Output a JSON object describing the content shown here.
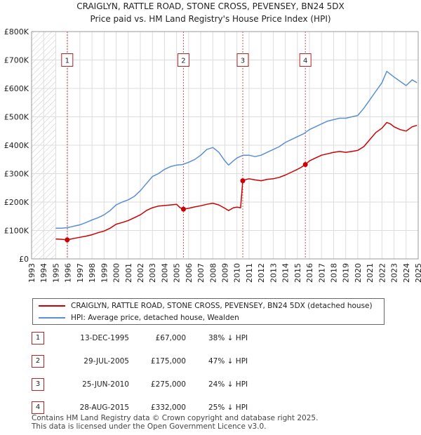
{
  "chart_data": {
    "type": "line",
    "title": "CRAIGLYN, RATTLE ROAD, STONE CROSS, PEVENSEY, BN24 5DX",
    "subtitle": "Price paid vs. HM Land Registry's House Price Index (HPI)",
    "xlabel": "",
    "ylabel": "",
    "xlim": [
      1993,
      2025
    ],
    "ylim": [
      0,
      800000
    ],
    "y_ticks": [
      0,
      100000,
      200000,
      300000,
      400000,
      500000,
      600000,
      700000,
      800000
    ],
    "y_tick_labels": [
      "£0",
      "£100K",
      "£200K",
      "£300K",
      "£400K",
      "£500K",
      "£600K",
      "£700K",
      "£800K"
    ],
    "x_ticks": [
      1993,
      1994,
      1995,
      1996,
      1997,
      1998,
      1999,
      2000,
      2001,
      2002,
      2003,
      2004,
      2005,
      2006,
      2007,
      2008,
      2009,
      2010,
      2011,
      2012,
      2013,
      2014,
      2015,
      2016,
      2017,
      2018,
      2019,
      2020,
      2021,
      2022,
      2023,
      2024,
      2025
    ],
    "x_tick_labels": [
      "1993",
      "1994",
      "1995",
      "1996",
      "1997",
      "1998",
      "1999",
      "2000",
      "2001",
      "2002",
      "2003",
      "2004",
      "2005",
      "2006",
      "2007",
      "2008",
      "2009",
      "2010",
      "2011",
      "2012",
      "2013",
      "2014",
      "2015",
      "2016",
      "2017",
      "2018",
      "2019",
      "2020",
      "2021",
      "2022",
      "2023",
      "2024",
      "2025"
    ],
    "grid": true,
    "hatched_before": 1995.0,
    "series": [
      {
        "name": "CRAIGLYN, RATTLE ROAD, STONE CROSS, PEVENSEY, BN24 5DX (detached house)",
        "color": "#cc0000",
        "x": [
          1995.0,
          1995.5,
          1995.95,
          1996.5,
          1997.0,
          1997.5,
          1998.0,
          1998.5,
          1999.0,
          1999.5,
          2000.0,
          2000.5,
          2001.0,
          2001.5,
          2002.0,
          2002.5,
          2003.0,
          2003.5,
          2004.0,
          2004.5,
          2005.0,
          2005.3,
          2005.57,
          2006.0,
          2006.5,
          2007.0,
          2007.5,
          2008.0,
          2008.5,
          2009.0,
          2009.3,
          2009.7,
          2010.0,
          2010.3,
          2010.48,
          2010.8,
          2011.0,
          2011.5,
          2012.0,
          2012.5,
          2013.0,
          2013.5,
          2014.0,
          2014.5,
          2015.0,
          2015.3,
          2015.66,
          2016.0,
          2016.5,
          2017.0,
          2017.5,
          2018.0,
          2018.5,
          2019.0,
          2019.5,
          2020.0,
          2020.5,
          2021.0,
          2021.5,
          2022.0,
          2022.4,
          2022.7,
          2023.0,
          2023.5,
          2024.0,
          2024.5,
          2024.9
        ],
        "values": [
          70000,
          69000,
          67000,
          72000,
          76000,
          80000,
          85000,
          92000,
          98000,
          108000,
          122000,
          128000,
          135000,
          145000,
          155000,
          170000,
          180000,
          186000,
          188000,
          190000,
          192000,
          180000,
          175000,
          178000,
          183000,
          187000,
          192000,
          196000,
          190000,
          178000,
          170000,
          180000,
          182000,
          180000,
          275000,
          280000,
          282000,
          278000,
          275000,
          280000,
          282000,
          287000,
          295000,
          305000,
          315000,
          322000,
          332000,
          345000,
          355000,
          365000,
          370000,
          375000,
          378000,
          375000,
          378000,
          382000,
          395000,
          420000,
          445000,
          460000,
          480000,
          475000,
          465000,
          455000,
          450000,
          465000,
          470000
        ]
      },
      {
        "name": "HPI: Average price, detached house, Wealden",
        "color": "#5b8fd2",
        "x": [
          1995.0,
          1995.5,
          1996.0,
          1996.5,
          1997.0,
          1997.5,
          1998.0,
          1998.5,
          1999.0,
          1999.5,
          2000.0,
          2000.5,
          2001.0,
          2001.5,
          2002.0,
          2002.5,
          2003.0,
          2003.5,
          2004.0,
          2004.5,
          2005.0,
          2005.5,
          2006.0,
          2006.5,
          2007.0,
          2007.5,
          2008.0,
          2008.5,
          2009.0,
          2009.3,
          2009.7,
          2010.0,
          2010.5,
          2011.0,
          2011.5,
          2012.0,
          2012.5,
          2013.0,
          2013.5,
          2014.0,
          2014.5,
          2015.0,
          2015.5,
          2016.0,
          2016.5,
          2017.0,
          2017.5,
          2018.0,
          2018.5,
          2019.0,
          2019.5,
          2020.0,
          2020.5,
          2021.0,
          2021.5,
          2022.0,
          2022.4,
          2022.7,
          2023.0,
          2023.5,
          2024.0,
          2024.5,
          2024.9
        ],
        "values": [
          108000,
          108000,
          110000,
          115000,
          120000,
          128000,
          137000,
          145000,
          155000,
          170000,
          190000,
          200000,
          208000,
          220000,
          240000,
          265000,
          290000,
          300000,
          315000,
          325000,
          330000,
          332000,
          340000,
          350000,
          365000,
          385000,
          392000,
          375000,
          345000,
          330000,
          345000,
          355000,
          365000,
          365000,
          360000,
          365000,
          375000,
          385000,
          395000,
          410000,
          420000,
          430000,
          440000,
          455000,
          465000,
          475000,
          485000,
          490000,
          495000,
          495000,
          500000,
          505000,
          530000,
          560000,
          590000,
          620000,
          660000,
          650000,
          640000,
          625000,
          610000,
          630000,
          620000
        ]
      }
    ],
    "sales": [
      {
        "label": "1",
        "x": 1995.95,
        "value": 67000
      },
      {
        "label": "2",
        "x": 2005.57,
        "value": 175000
      },
      {
        "label": "3",
        "x": 2010.48,
        "value": 275000
      },
      {
        "label": "4",
        "x": 2015.66,
        "value": 332000
      }
    ],
    "marker_label_value": 700000
  },
  "legend": {
    "property_label": "CRAIGLYN, RATTLE ROAD, STONE CROSS, PEVENSEY, BN24 5DX (detached house)",
    "hpi_label": "HPI: Average price, detached house, Wealden"
  },
  "sales_table": [
    {
      "num": "1",
      "date": "13-DEC-1995",
      "price": "£67,000",
      "hpi": "38% ↓ HPI"
    },
    {
      "num": "2",
      "date": "29-JUL-2005",
      "price": "£175,000",
      "hpi": "47% ↓ HPI"
    },
    {
      "num": "3",
      "date": "25-JUN-2010",
      "price": "£275,000",
      "hpi": "24% ↓ HPI"
    },
    {
      "num": "4",
      "date": "28-AUG-2015",
      "price": "£332,000",
      "hpi": "25% ↓ HPI"
    }
  ],
  "footer": {
    "line1": "Contains HM Land Registry data © Crown copyright and database right 2025.",
    "line2": "This data is licensed under the Open Government Licence v3.0."
  },
  "colors": {
    "property": "#cc0000",
    "hpi": "#5b8fd2",
    "marker_border": "#b22222",
    "grid": "#dddddd"
  }
}
